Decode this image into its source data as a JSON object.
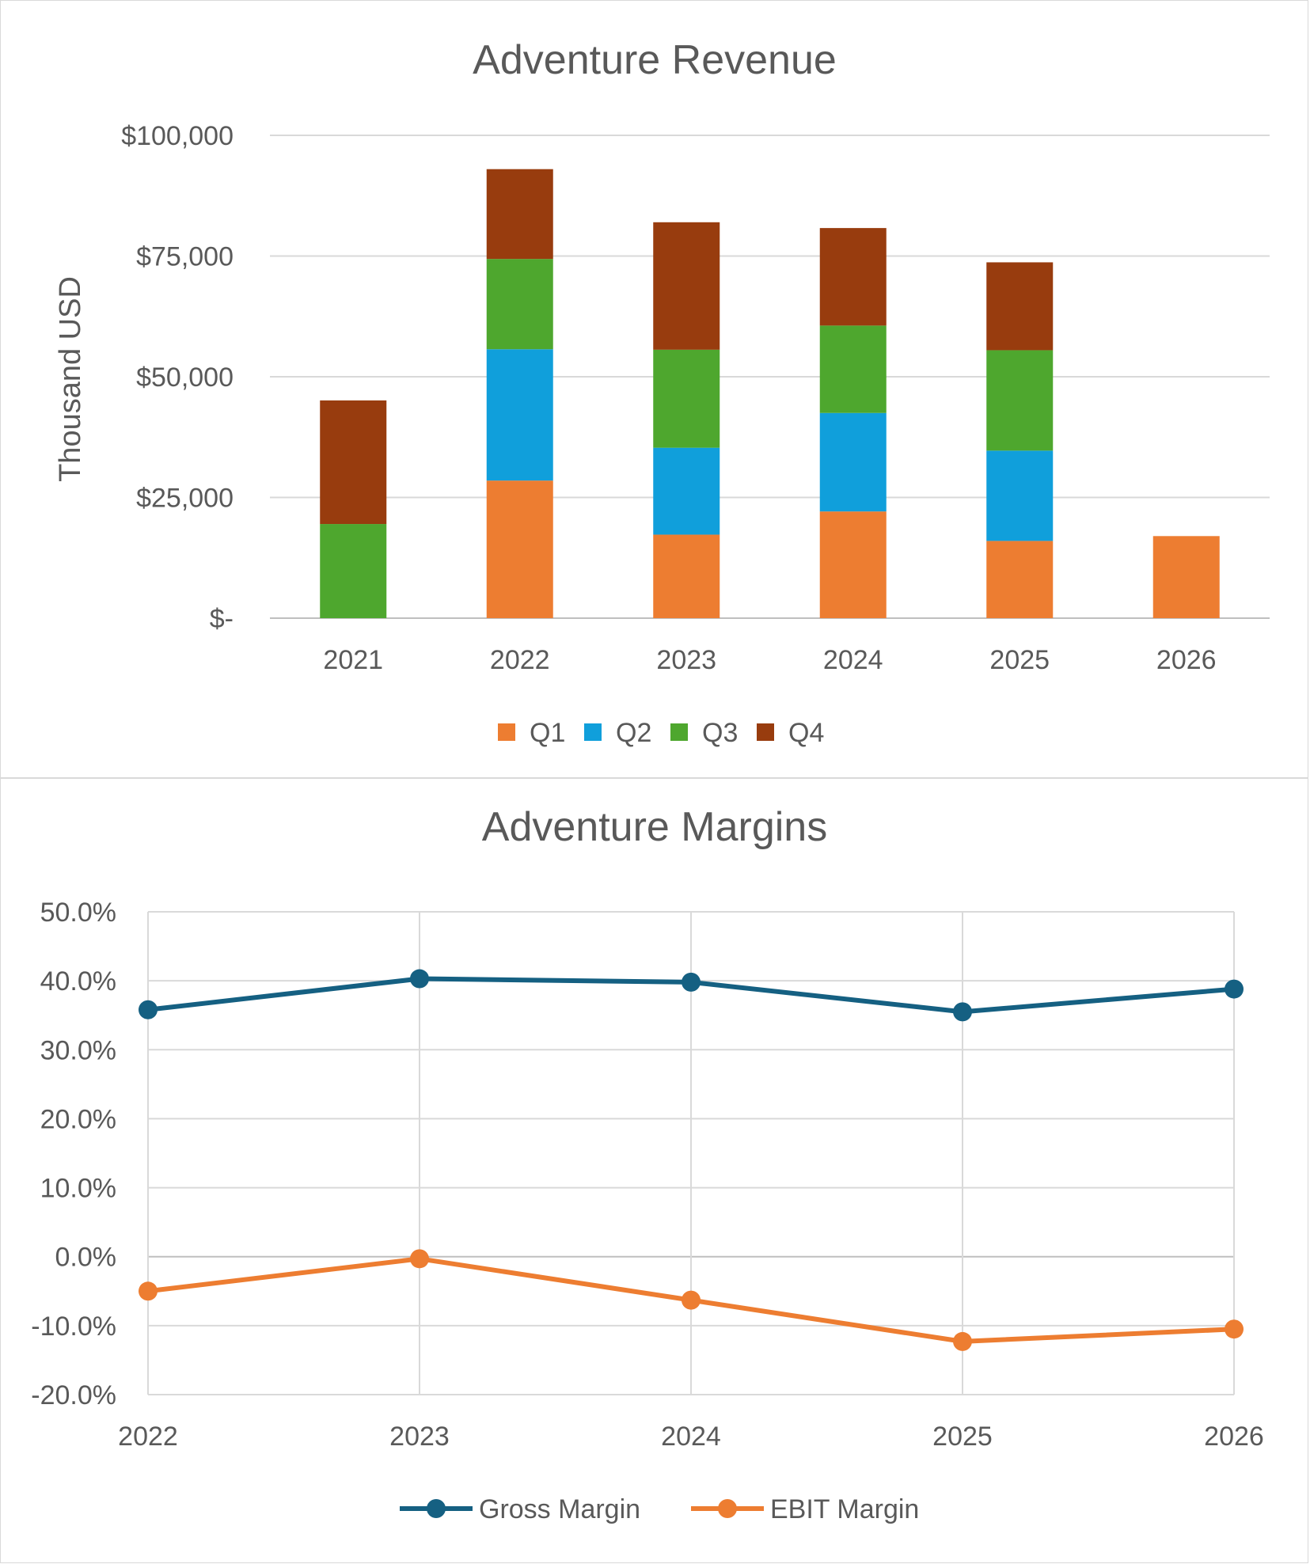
{
  "chart_data": [
    {
      "type": "bar",
      "stacked": true,
      "title": "Adventure Revenue",
      "ylabel": "Thousand USD",
      "xlabel": "",
      "categories": [
        "2021",
        "2022",
        "2023",
        "2024",
        "2025",
        "2026"
      ],
      "series": [
        {
          "name": "Q1",
          "color": "#ED7D31",
          "values": [
            0,
            28500,
            17300,
            22100,
            16000,
            17000
          ]
        },
        {
          "name": "Q2",
          "color": "#109FDB",
          "values": [
            0,
            27200,
            18000,
            20400,
            18700,
            0
          ]
        },
        {
          "name": "Q3",
          "color": "#4EA72E",
          "values": [
            19500,
            18700,
            20300,
            18100,
            20800,
            0
          ]
        },
        {
          "name": "Q4",
          "color": "#983C0E",
          "values": [
            25600,
            18600,
            26400,
            20200,
            18200,
            0
          ]
        }
      ],
      "ylim": [
        0,
        100000
      ],
      "y_ticks": [
        {
          "value": 0,
          "label": "$-"
        },
        {
          "value": 25000,
          "label": "$25,000"
        },
        {
          "value": 50000,
          "label": "$50,000"
        },
        {
          "value": 75000,
          "label": "$75,000"
        },
        {
          "value": 100000,
          "label": "$100,000"
        }
      ],
      "grid": true,
      "legend": "bottom"
    },
    {
      "type": "line",
      "title": "Adventure Margins",
      "xlabel": "",
      "ylabel": "",
      "categories": [
        "2022",
        "2023",
        "2024",
        "2025",
        "2026"
      ],
      "series": [
        {
          "name": "Gross Margin",
          "color": "#156082",
          "values": [
            35.8,
            40.3,
            39.8,
            35.5,
            38.8
          ]
        },
        {
          "name": "EBIT Margin",
          "color": "#ED7D31",
          "values": [
            -5.0,
            -0.3,
            -6.3,
            -12.3,
            -10.5
          ]
        }
      ],
      "ylim": [
        -20,
        50
      ],
      "y_ticks": [
        {
          "value": 50,
          "label": "50.0%"
        },
        {
          "value": 40,
          "label": "40.0%"
        },
        {
          "value": 30,
          "label": "30.0%"
        },
        {
          "value": 20,
          "label": "20.0%"
        },
        {
          "value": 10,
          "label": "10.0%"
        },
        {
          "value": 0,
          "label": "0.0%"
        },
        {
          "value": -10,
          "label": "-10.0%"
        },
        {
          "value": -20,
          "label": "-20.0%"
        }
      ],
      "grid": true,
      "legend": "bottom"
    }
  ]
}
